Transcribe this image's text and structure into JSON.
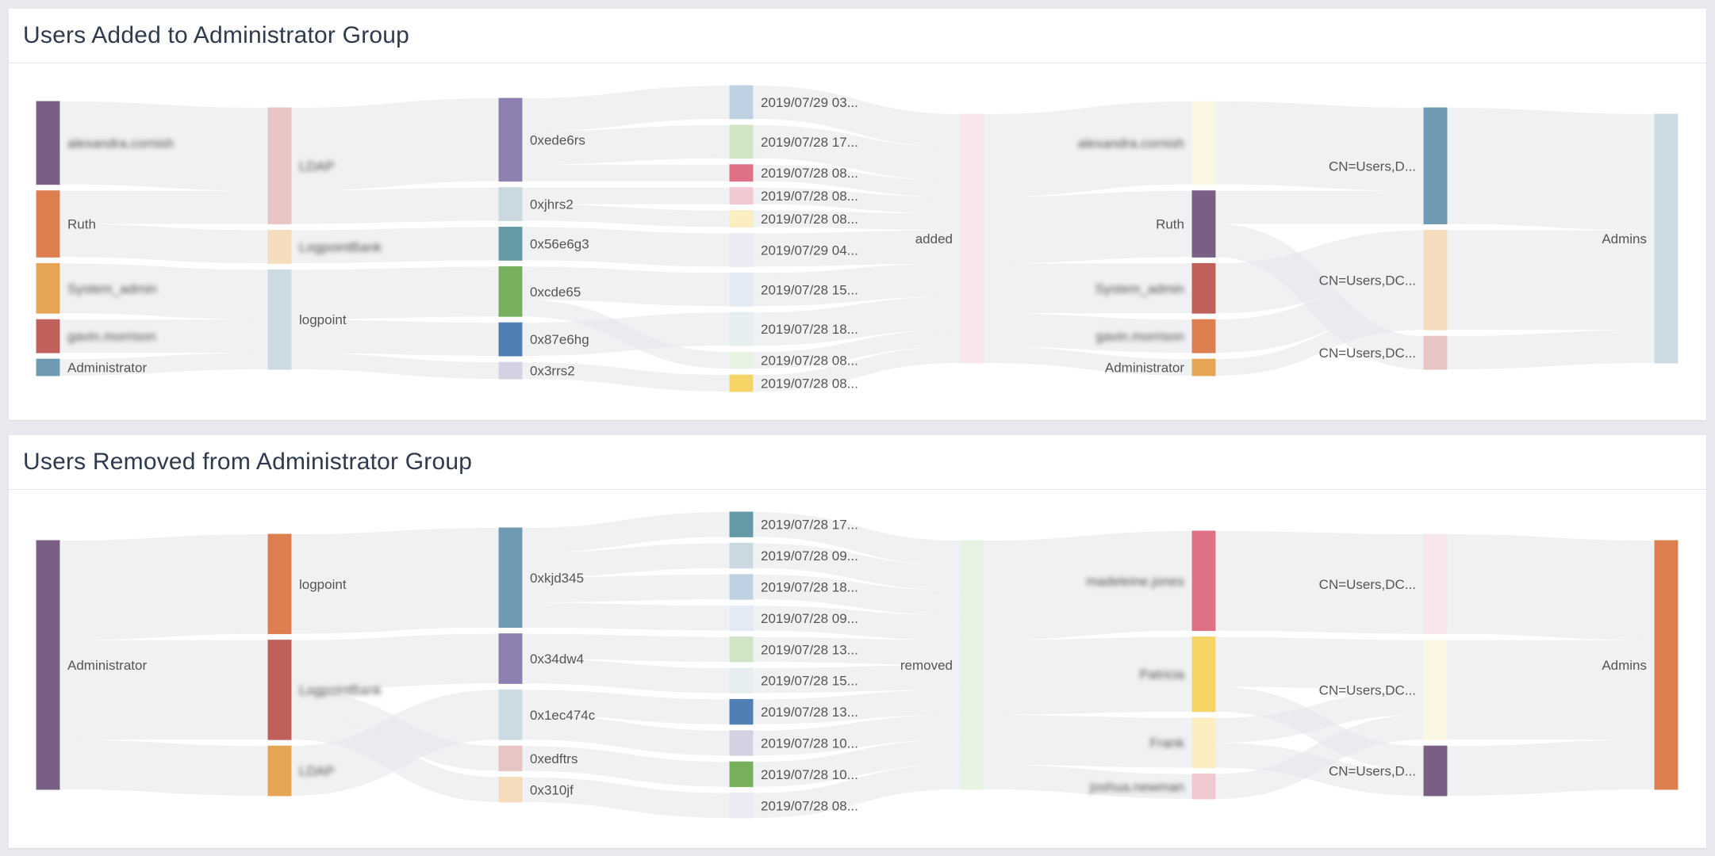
{
  "chart_data": [
    {
      "type": "sankey",
      "title": "Users Added to Administrator Group",
      "link_color": "#e4e5ea",
      "nodes": [
        {
          "label": "alexandra.cornish",
          "col": 0,
          "color": "#7a5f85",
          "blurred": true
        },
        {
          "label": "Ruth",
          "col": 0,
          "color": "#dd7e4e"
        },
        {
          "label": "System_admin",
          "col": 0,
          "color": "#e6a555",
          "blurred": true
        },
        {
          "label": "gavin.morrison",
          "col": 0,
          "color": "#c0605a",
          "blurred": true
        },
        {
          "label": "Administrator",
          "col": 0,
          "color": "#6e9ab3"
        },
        {
          "label": "LDAP",
          "col": 1,
          "color": "#e8c4c4",
          "blurred": true
        },
        {
          "label": "LogpointBank",
          "col": 1,
          "color": "#f5dcbc",
          "blurred": true
        },
        {
          "label": "logpoint",
          "col": 1,
          "color": "#ccdbe3"
        },
        {
          "label": "0xede6rs",
          "col": 2,
          "color": "#8d80b0"
        },
        {
          "label": "0xjhrs2",
          "col": 2,
          "color": "#c9d9df"
        },
        {
          "label": "0x56e6g3",
          "col": 2,
          "color": "#6699a6"
        },
        {
          "label": "0xcde65",
          "col": 2,
          "color": "#76b05c"
        },
        {
          "label": "0x87e6hg",
          "col": 2,
          "color": "#4f7fb5"
        },
        {
          "label": "0x3rrs2",
          "col": 2,
          "color": "#d5d0e2"
        },
        {
          "label": "2019/07/29 03...",
          "col": 3,
          "color": "#bfd1e3"
        },
        {
          "label": "2019/07/28 17...",
          "col": 3,
          "color": "#d0e4c6"
        },
        {
          "label": "2019/07/28 08...",
          "col": 3,
          "color": "#e07085"
        },
        {
          "label": "2019/07/28 08...",
          "col": 3,
          "color": "#f0c9d1"
        },
        {
          "label": "2019/07/28 08...",
          "col": 3,
          "color": "#fbedc0"
        },
        {
          "label": "2019/07/29 04...",
          "col": 3,
          "color": "#ecebf4"
        },
        {
          "label": "2019/07/28 15...",
          "col": 3,
          "color": "#e3eaf3"
        },
        {
          "label": "2019/07/28 18...",
          "col": 3,
          "color": "#e6eeef"
        },
        {
          "label": "2019/07/28 08...",
          "col": 3,
          "color": "#e8f2e3"
        },
        {
          "label": "2019/07/28 08...",
          "col": 3,
          "color": "#f6d466"
        },
        {
          "label": "added",
          "col": 4,
          "color": "#f7e6ea"
        },
        {
          "label": "alexandra.cornish",
          "col": 5,
          "color": "#fcf6e5",
          "blurred": true
        },
        {
          "label": "Ruth",
          "col": 5,
          "color": "#7a5f85"
        },
        {
          "label": "System_admin",
          "col": 5,
          "color": "#c0605a",
          "blurred": true
        },
        {
          "label": "gavin.morrison",
          "col": 5,
          "color": "#dd7e4e",
          "blurred": true
        },
        {
          "label": "Administrator",
          "col": 5,
          "color": "#e6a555"
        },
        {
          "label": "CN=Users,D...",
          "col": 6,
          "color": "#6e9ab3"
        },
        {
          "label": "CN=Users,DC...",
          "col": 6,
          "color": "#f5dcbc"
        },
        {
          "label": "CN=Users,DC...",
          "col": 6,
          "color": "#e8c4c4"
        },
        {
          "label": "Admins",
          "col": 7,
          "color": "#ccdbe3"
        }
      ],
      "links": [
        [
          0,
          5,
          5
        ],
        [
          1,
          5,
          2
        ],
        [
          1,
          6,
          2
        ],
        [
          2,
          7,
          3
        ],
        [
          3,
          7,
          2
        ],
        [
          4,
          7,
          1
        ],
        [
          5,
          8,
          5
        ],
        [
          5,
          9,
          2
        ],
        [
          6,
          10,
          2
        ],
        [
          7,
          11,
          3
        ],
        [
          7,
          12,
          2
        ],
        [
          7,
          13,
          1
        ],
        [
          8,
          14,
          2
        ],
        [
          8,
          15,
          2
        ],
        [
          8,
          16,
          1
        ],
        [
          9,
          17,
          1
        ],
        [
          9,
          18,
          1
        ],
        [
          10,
          19,
          2
        ],
        [
          11,
          20,
          2
        ],
        [
          11,
          22,
          1
        ],
        [
          12,
          21,
          2
        ],
        [
          13,
          23,
          1
        ],
        [
          14,
          24,
          2
        ],
        [
          15,
          24,
          2
        ],
        [
          16,
          24,
          1
        ],
        [
          17,
          24,
          1
        ],
        [
          18,
          24,
          1
        ],
        [
          19,
          24,
          2
        ],
        [
          20,
          24,
          2
        ],
        [
          21,
          24,
          2
        ],
        [
          22,
          24,
          1
        ],
        [
          23,
          24,
          1
        ],
        [
          24,
          25,
          5
        ],
        [
          24,
          26,
          4
        ],
        [
          24,
          27,
          3
        ],
        [
          24,
          28,
          2
        ],
        [
          24,
          29,
          1
        ],
        [
          25,
          30,
          5
        ],
        [
          26,
          30,
          2
        ],
        [
          26,
          32,
          2
        ],
        [
          27,
          31,
          3
        ],
        [
          28,
          31,
          2
        ],
        [
          29,
          31,
          1
        ],
        [
          30,
          33,
          7
        ],
        [
          31,
          33,
          6
        ],
        [
          32,
          33,
          2
        ]
      ]
    },
    {
      "type": "sankey",
      "title": "Users Removed from Administrator Group",
      "link_color": "#e4e5ea",
      "nodes": [
        {
          "label": "Administrator",
          "col": 0,
          "color": "#7a5f85"
        },
        {
          "label": "logpoint",
          "col": 1,
          "color": "#dd7e4e"
        },
        {
          "label": "LogpointBank",
          "col": 1,
          "color": "#c0605a",
          "blurred": true
        },
        {
          "label": "LDAP",
          "col": 1,
          "color": "#e6a555",
          "blurred": true
        },
        {
          "label": "0xkjd345",
          "col": 2,
          "color": "#6e9ab3"
        },
        {
          "label": "0x34dw4",
          "col": 2,
          "color": "#8d80b0"
        },
        {
          "label": "0x1ec474c",
          "col": 2,
          "color": "#ccdbe3"
        },
        {
          "label": "0xedftrs",
          "col": 2,
          "color": "#e8c4c4"
        },
        {
          "label": "0x310jf",
          "col": 2,
          "color": "#f5dcbc"
        },
        {
          "label": "2019/07/28 17...",
          "col": 3,
          "color": "#6699a6"
        },
        {
          "label": "2019/07/28 09...",
          "col": 3,
          "color": "#c9d9df"
        },
        {
          "label": "2019/07/28 18...",
          "col": 3,
          "color": "#bfd1e3"
        },
        {
          "label": "2019/07/28 09...",
          "col": 3,
          "color": "#e3eaf3"
        },
        {
          "label": "2019/07/28 13...",
          "col": 3,
          "color": "#d0e4c6"
        },
        {
          "label": "2019/07/28 15...",
          "col": 3,
          "color": "#e6eeef"
        },
        {
          "label": "2019/07/28 13...",
          "col": 3,
          "color": "#4f7fb5"
        },
        {
          "label": "2019/07/28 10...",
          "col": 3,
          "color": "#d5d0e2"
        },
        {
          "label": "2019/07/28 10...",
          "col": 3,
          "color": "#76b05c"
        },
        {
          "label": "2019/07/28 08...",
          "col": 3,
          "color": "#ecebf4"
        },
        {
          "label": "removed",
          "col": 4,
          "color": "#e8f2e3"
        },
        {
          "label": "madeleine.jones",
          "col": 5,
          "color": "#e07085",
          "blurred": true
        },
        {
          "label": "Patricia",
          "col": 5,
          "color": "#f6d466",
          "blurred": true
        },
        {
          "label": "Frank",
          "col": 5,
          "color": "#fbedc0",
          "blurred": true
        },
        {
          "label": "joshua.newman",
          "col": 5,
          "color": "#f0c9d1",
          "blurred": true
        },
        {
          "label": "CN=Users,DC...",
          "col": 6,
          "color": "#f7e6ea"
        },
        {
          "label": "CN=Users,DC...",
          "col": 6,
          "color": "#fcf6e5"
        },
        {
          "label": "CN=Users,D...",
          "col": 6,
          "color": "#7a5f85"
        },
        {
          "label": "Admins",
          "col": 7,
          "color": "#dd7e4e"
        }
      ],
      "links": [
        [
          0,
          1,
          4
        ],
        [
          0,
          2,
          4
        ],
        [
          0,
          3,
          2
        ],
        [
          1,
          4,
          4
        ],
        [
          2,
          5,
          2
        ],
        [
          2,
          7,
          1
        ],
        [
          2,
          8,
          1
        ],
        [
          3,
          6,
          2
        ],
        [
          4,
          9,
          1
        ],
        [
          4,
          10,
          1
        ],
        [
          4,
          11,
          1
        ],
        [
          4,
          12,
          1
        ],
        [
          5,
          13,
          1
        ],
        [
          5,
          14,
          1
        ],
        [
          6,
          15,
          1
        ],
        [
          6,
          16,
          1
        ],
        [
          7,
          17,
          1
        ],
        [
          8,
          18,
          1
        ],
        [
          9,
          19,
          1
        ],
        [
          10,
          19,
          1
        ],
        [
          11,
          19,
          1
        ],
        [
          12,
          19,
          1
        ],
        [
          13,
          19,
          1
        ],
        [
          14,
          19,
          1
        ],
        [
          15,
          19,
          1
        ],
        [
          16,
          19,
          1
        ],
        [
          17,
          19,
          1
        ],
        [
          18,
          19,
          1
        ],
        [
          19,
          20,
          4
        ],
        [
          19,
          21,
          3
        ],
        [
          19,
          22,
          2
        ],
        [
          19,
          23,
          1
        ],
        [
          20,
          24,
          4
        ],
        [
          21,
          25,
          2
        ],
        [
          21,
          26,
          1
        ],
        [
          22,
          25,
          1
        ],
        [
          22,
          26,
          1
        ],
        [
          23,
          25,
          1
        ],
        [
          24,
          27,
          4
        ],
        [
          25,
          27,
          4
        ],
        [
          26,
          27,
          2
        ]
      ]
    }
  ]
}
